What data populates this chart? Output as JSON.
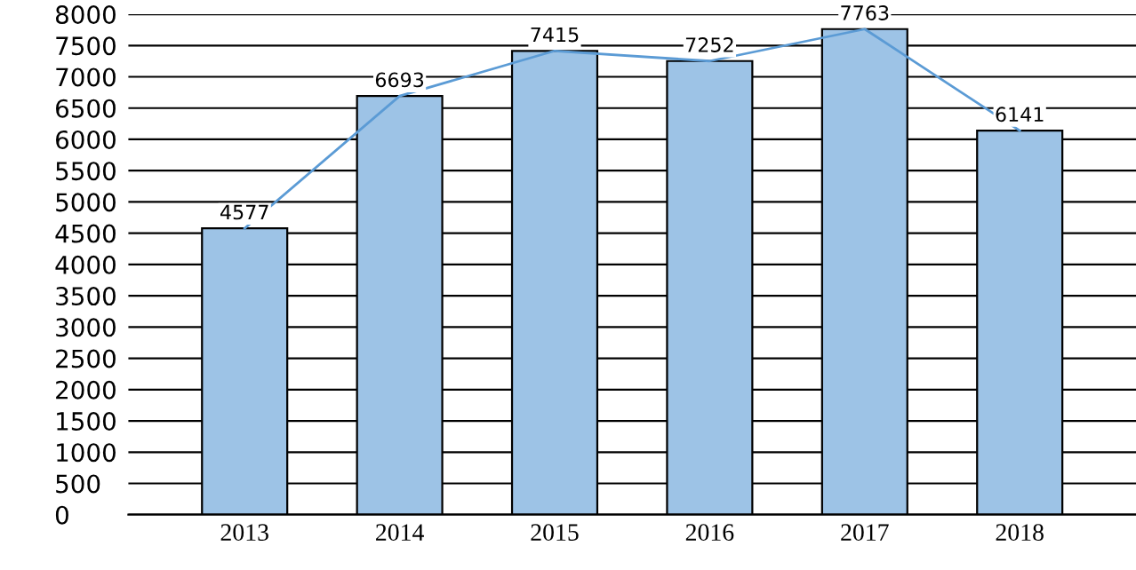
{
  "chart_data": {
    "type": "bar",
    "categories": [
      "2013",
      "2014",
      "2015",
      "2016",
      "2017",
      "2018"
    ],
    "series": [
      {
        "color": "#9dc3e6",
        "values": [
          4577,
          6693,
          7415,
          7252,
          7763,
          6141
        ],
        "value_labels": [
          "4577",
          "6693",
          "7415",
          "7252",
          "7763",
          "6141"
        ]
      },
      {
        "type": "line",
        "color": "#5b9bd5",
        "values": [
          4577,
          6693,
          7415,
          7252,
          7763,
          6141
        ]
      }
    ],
    "ylim": [
      0,
      8000
    ],
    "yticks": [
      0,
      500,
      1000,
      1500,
      2000,
      2500,
      3000,
      3500,
      4000,
      4500,
      5000,
      5500,
      6000,
      6500,
      7000,
      7500,
      8000
    ],
    "grid": "y",
    "legend": false
  }
}
